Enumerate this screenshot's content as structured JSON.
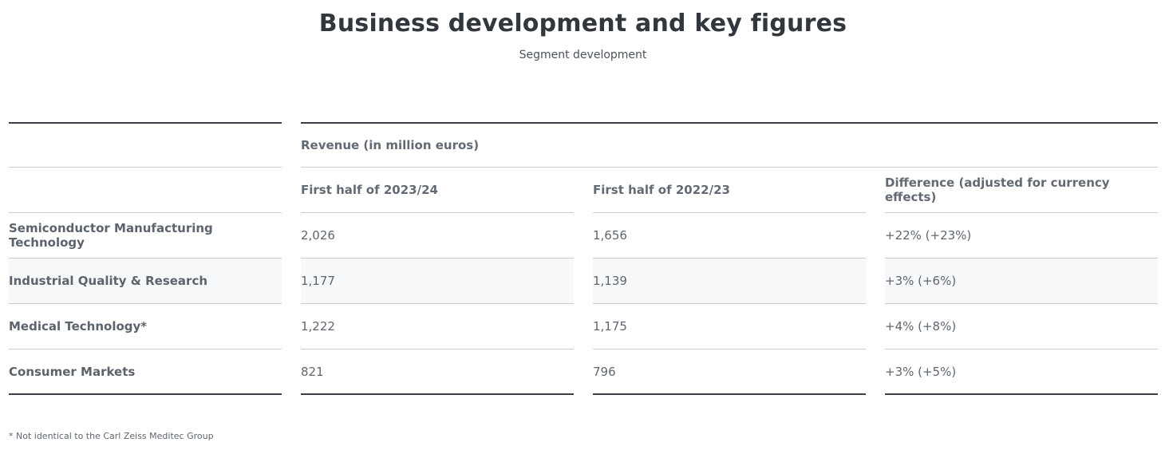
{
  "header": {
    "title": "Business development and key figures",
    "subtitle": "Segment development"
  },
  "table": {
    "group_header": "Revenue (in million euros)",
    "columns": [
      "",
      "First half of 2023/24",
      "First half of 2022/23",
      "Difference (adjusted for currency effects)"
    ],
    "rows": [
      {
        "segment": "Semiconductor Manufacturing Technology",
        "h1_2023_24": "2,026",
        "h1_2022_23": "1,656",
        "difference": "+22% (+23%)"
      },
      {
        "segment": "Industrial Quality & Research",
        "h1_2023_24": "1,177",
        "h1_2022_23": "1,139",
        "difference": "+3% (+6%)"
      },
      {
        "segment": "Medical Technology*",
        "h1_2023_24": "1,222",
        "h1_2022_23": "1,175",
        "difference": "+4% (+8%)"
      },
      {
        "segment": "Consumer Markets",
        "h1_2023_24": "821",
        "h1_2022_23": "796",
        "difference": "+3% (+5%)"
      }
    ]
  },
  "footnote": "* Not identical to the Carl Zeiss Meditec Group"
}
